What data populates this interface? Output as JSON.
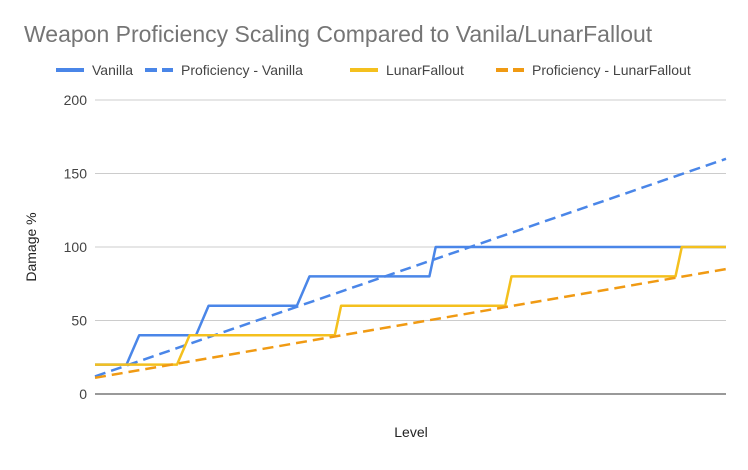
{
  "chart_data": {
    "type": "line",
    "title": "Weapon Proficiency Scaling Compared to Vanila/LunarFallout",
    "xlabel": "Level",
    "ylabel": "Damage %",
    "xlim": [
      0,
      100
    ],
    "ylim": [
      0,
      200
    ],
    "y_ticks": [
      "0",
      "50",
      "100",
      "150",
      "200"
    ],
    "grid": true,
    "legend_position": "top",
    "series": [
      {
        "name": "Vanilla",
        "color": "#4a86e8",
        "dash": "solid",
        "points": [
          [
            0,
            20
          ],
          [
            5,
            20
          ],
          [
            7,
            40
          ],
          [
            16,
            40
          ],
          [
            18,
            60
          ],
          [
            32,
            60
          ],
          [
            34,
            80
          ],
          [
            53,
            80
          ],
          [
            54,
            100
          ],
          [
            100,
            100
          ]
        ]
      },
      {
        "name": "Proficiency - Vanilla",
        "color": "#4a86e8",
        "dash": "dashed",
        "points": [
          [
            0,
            12
          ],
          [
            100,
            160
          ]
        ]
      },
      {
        "name": "LunarFallout",
        "color": "#f4c01e",
        "dash": "solid",
        "points": [
          [
            0,
            20
          ],
          [
            13,
            20
          ],
          [
            15,
            40
          ],
          [
            38,
            40
          ],
          [
            39,
            60
          ],
          [
            65,
            60
          ],
          [
            66,
            80
          ],
          [
            92,
            80
          ],
          [
            93,
            100
          ],
          [
            100,
            100
          ]
        ]
      },
      {
        "name": "Proficiency - LunarFallout",
        "color": "#f09a13",
        "dash": "dashed",
        "points": [
          [
            0,
            11
          ],
          [
            100,
            85
          ]
        ]
      }
    ]
  }
}
